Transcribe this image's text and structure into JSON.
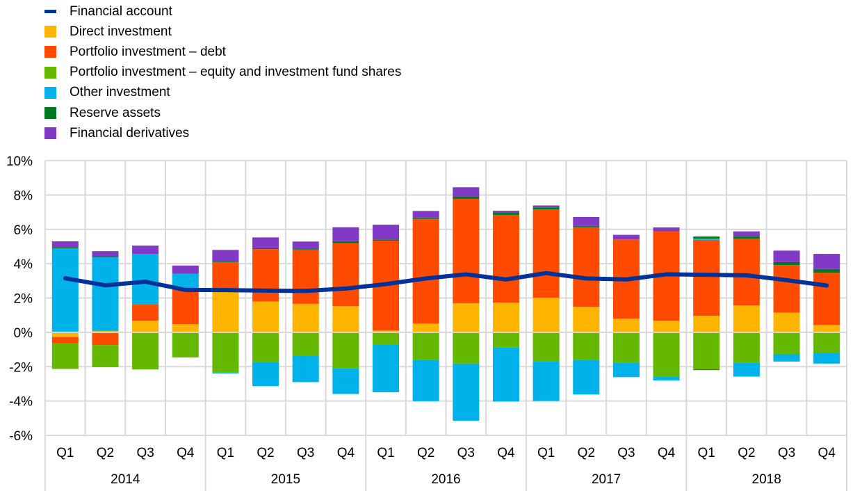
{
  "chart_data": {
    "type": "bar",
    "stacked": true,
    "title": "",
    "xlabel": "",
    "ylabel": "",
    "ylim": [
      -6,
      10
    ],
    "yticks": [
      -6,
      -4,
      -2,
      0,
      2,
      4,
      6,
      8,
      10
    ],
    "ytick_labels": [
      "-6%",
      "-4%",
      "-2%",
      "0%",
      "2%",
      "4%",
      "6%",
      "8%",
      "10%"
    ],
    "grid": true,
    "legend_position": "top-left",
    "categories": [
      "Q1",
      "Q2",
      "Q3",
      "Q4",
      "Q1",
      "Q2",
      "Q3",
      "Q4",
      "Q1",
      "Q2",
      "Q3",
      "Q4",
      "Q1",
      "Q2",
      "Q3",
      "Q4",
      "Q1",
      "Q2",
      "Q3",
      "Q4"
    ],
    "groups": [
      {
        "label": "2014",
        "count": 4
      },
      {
        "label": "2015",
        "count": 4
      },
      {
        "label": "2016",
        "count": 4
      },
      {
        "label": "2017",
        "count": 4
      },
      {
        "label": "2018",
        "count": 4
      }
    ],
    "series": [
      {
        "name": "Direct investment",
        "kind": "bar",
        "color": "#FFB400",
        "values": [
          -0.27,
          0.08,
          0.68,
          0.47,
          2.38,
          1.8,
          1.66,
          1.52,
          0.11,
          0.51,
          1.69,
          1.73,
          2.01,
          1.49,
          0.79,
          0.68,
          0.96,
          1.57,
          1.15,
          0.43
        ]
      },
      {
        "name": "Portfolio investment – debt",
        "kind": "bar",
        "color": "#FF4B00",
        "values": [
          -0.36,
          -0.74,
          0.94,
          2.08,
          1.7,
          3.05,
          3.14,
          3.68,
          5.23,
          6.1,
          6.08,
          5.1,
          5.15,
          4.63,
          4.62,
          5.21,
          4.43,
          3.88,
          2.77,
          3.04
        ]
      },
      {
        "name": "Portfolio investment – equity and investment fund shares",
        "kind": "bar",
        "color": "#65B800",
        "values": [
          -1.5,
          -1.29,
          -2.16,
          -1.46,
          -2.35,
          -1.73,
          -1.36,
          -2.08,
          -0.7,
          -1.59,
          -1.82,
          -0.89,
          -1.71,
          -1.59,
          -1.76,
          -2.58,
          -2.15,
          -1.76,
          -1.26,
          -1.2
        ]
      },
      {
        "name": "Other investment",
        "kind": "bar",
        "color": "#00B1EA",
        "values": [
          4.9,
          4.3,
          2.95,
          0.87,
          -0.04,
          -1.4,
          -1.54,
          -1.51,
          -2.79,
          -2.42,
          -3.33,
          -3.14,
          -2.29,
          -2.03,
          -0.85,
          -0.22,
          0.07,
          -0.82,
          -0.44,
          -0.62
        ]
      },
      {
        "name": "Reserve assets",
        "kind": "bar",
        "color": "#00781E",
        "values": [
          0.07,
          0.05,
          0.0,
          0.0,
          0.04,
          0.05,
          0.05,
          0.11,
          0.07,
          0.08,
          0.14,
          0.13,
          0.12,
          0.08,
          0.0,
          0.0,
          0.12,
          0.13,
          0.17,
          0.22
        ]
      },
      {
        "name": "Financial derivatives",
        "kind": "bar",
        "color": "#8139C6",
        "values": [
          0.33,
          0.3,
          0.48,
          0.47,
          0.68,
          0.63,
          0.44,
          0.81,
          0.86,
          0.38,
          0.54,
          0.12,
          0.11,
          0.52,
          0.27,
          0.22,
          -0.05,
          0.3,
          0.67,
          0.88
        ]
      },
      {
        "name": "Financial account",
        "kind": "line",
        "color": "#003299",
        "values": [
          3.15,
          2.74,
          2.95,
          2.47,
          2.46,
          2.43,
          2.41,
          2.55,
          2.81,
          3.14,
          3.38,
          3.08,
          3.45,
          3.14,
          3.08,
          3.38,
          3.35,
          3.32,
          3.04,
          2.73
        ]
      }
    ],
    "legend": [
      {
        "label": "Financial account",
        "color": "#003299",
        "shape": "line"
      },
      {
        "label": "Direct investment",
        "color": "#FFB400",
        "shape": "square"
      },
      {
        "label": "Portfolio investment – debt",
        "color": "#FF4B00",
        "shape": "square"
      },
      {
        "label": "Portfolio investment – equity and investment fund shares",
        "color": "#65B800",
        "shape": "square"
      },
      {
        "label": "Other investment",
        "color": "#00B1EA",
        "shape": "square"
      },
      {
        "label": "Reserve assets",
        "color": "#00781E",
        "shape": "square"
      },
      {
        "label": "Financial derivatives",
        "color": "#8139C6",
        "shape": "square"
      }
    ]
  }
}
